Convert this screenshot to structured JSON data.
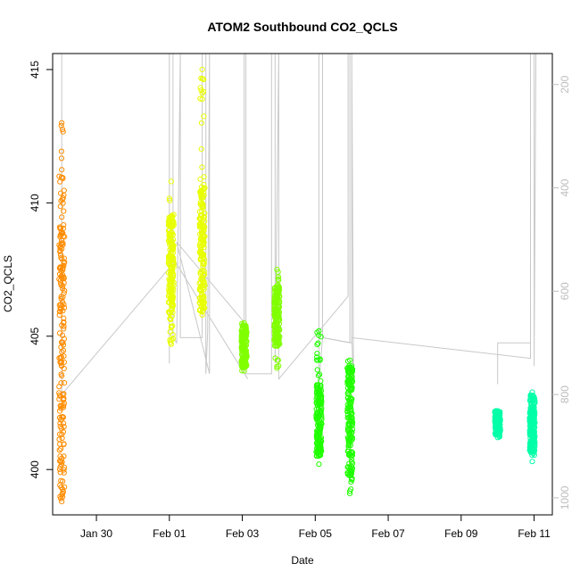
{
  "chart_data": {
    "type": "scatter",
    "title": "ATOM2 Southbound CO2_QCLS",
    "xlabel": "Date",
    "ylabel": "CO2_QCLS",
    "x_ticks": [
      "Jan 30",
      "Feb 01",
      "Feb 03",
      "Feb 05",
      "Feb 07",
      "Feb 09",
      "Feb 11"
    ],
    "x_tick_days": [
      1,
      3,
      5,
      7,
      9,
      11,
      13
    ],
    "xlim_days": [
      -0.2,
      13.5
    ],
    "ylim": [
      398.3,
      415.6
    ],
    "y_ticks": [
      400,
      405,
      410,
      415
    ],
    "right_axis": {
      "ticks": [
        200,
        400,
        600,
        800,
        1000
      ],
      "lim": [
        1033,
        140
      ],
      "reversed": true,
      "color": "#bdbdbd"
    },
    "grid": false,
    "series": [
      {
        "color": "#ff8c00",
        "clusters": [
          {
            "day": 0.05,
            "min": 398.8,
            "max": 413.0,
            "dense_lo": 398.8,
            "dense_hi": 411.3
          }
        ]
      },
      {
        "color": "#e8ff00",
        "clusters": [
          {
            "day": 3.05,
            "min": 404.7,
            "max": 410.8,
            "dense_lo": 405.6,
            "dense_hi": 409.6
          },
          {
            "day": 3.9,
            "min": 405.8,
            "max": 415.0,
            "dense_lo": 405.9,
            "dense_hi": 410.7
          }
        ]
      },
      {
        "color": "#80ff00",
        "clusters": [
          {
            "day": 5.05,
            "min": 403.7,
            "max": 405.5,
            "dense_lo": 403.8,
            "dense_hi": 405.4
          },
          {
            "day": 5.95,
            "min": 403.8,
            "max": 407.5,
            "dense_lo": 404.6,
            "dense_hi": 406.9
          }
        ]
      },
      {
        "color": "#20ff00",
        "clusters": [
          {
            "day": 7.1,
            "min": 400.2,
            "max": 405.2,
            "dense_lo": 400.5,
            "dense_hi": 403.2
          },
          {
            "day": 7.95,
            "min": 399.1,
            "max": 404.1,
            "dense_lo": 399.5,
            "dense_hi": 403.9
          }
        ]
      },
      {
        "color": "#00ffa8",
        "clusters": [
          {
            "day": 12.0,
            "min": 401.2,
            "max": 402.2,
            "dense_lo": 401.3,
            "dense_hi": 402.2
          },
          {
            "day": 12.95,
            "min": 400.3,
            "max": 402.9,
            "dense_lo": 400.6,
            "dense_hi": 402.8
          }
        ]
      }
    ],
    "altitude_trace": {
      "color": "#c8c8c8",
      "path": [
        [
          0.05,
          800
        ],
        [
          0.05,
          130
        ],
        [
          0.05,
          800
        ],
        [
          3.0,
          555
        ],
        [
          3.0,
          740
        ],
        [
          3.0,
          130
        ],
        [
          3.1,
          130
        ],
        [
          3.1,
          690
        ],
        [
          3.2,
          700
        ],
        [
          3.3,
          130
        ],
        [
          3.3,
          690
        ],
        [
          3.9,
          690
        ],
        [
          3.9,
          130
        ],
        [
          4.0,
          130
        ],
        [
          4.0,
          760
        ],
        [
          4.05,
          680
        ],
        [
          4.1,
          130
        ],
        [
          4.1,
          760
        ],
        [
          3.2,
          505
        ],
        [
          5.05,
          660
        ],
        [
          5.05,
          130
        ],
        [
          5.1,
          130
        ],
        [
          5.1,
          760
        ],
        [
          5.8,
          760
        ],
        [
          5.8,
          130
        ],
        [
          5.9,
          130
        ],
        [
          5.9,
          740
        ],
        [
          6.0,
          130
        ],
        [
          6.0,
          770
        ],
        [
          7.9,
          610
        ],
        [
          7.9,
          130
        ],
        [
          8.0,
          130
        ],
        [
          8.0,
          700
        ],
        [
          7.2,
          690
        ],
        [
          7.1,
          780
        ],
        [
          7.1,
          130
        ],
        [
          7.2,
          130
        ],
        [
          7.2,
          690
        ],
        [
          7.95,
          700
        ],
        [
          7.95,
          130
        ],
        [
          8.0,
          130
        ],
        [
          8.05,
          770
        ],
        [
          8.0,
          690
        ],
        [
          12.9,
          730
        ],
        [
          12.9,
          130
        ],
        [
          13.0,
          130
        ],
        [
          13.0,
          745
        ],
        [
          13.05,
          130
        ]
      ],
      "extra_segments": [
        [
          [
            12.0,
            780
          ],
          [
            12.0,
            700
          ],
          [
            12.9,
            700
          ]
        ],
        [
          [
            3.05,
            530
          ],
          [
            5.15,
            770
          ]
        ]
      ]
    }
  }
}
